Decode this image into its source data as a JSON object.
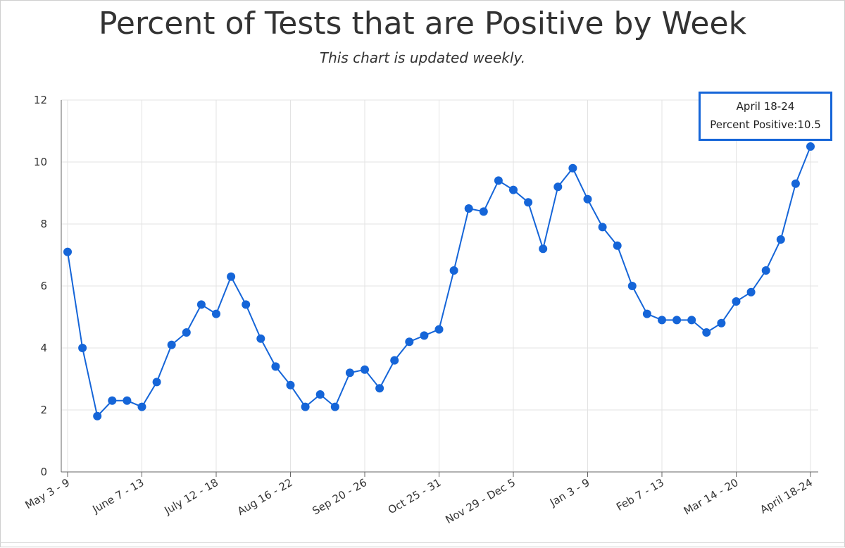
{
  "colors": {
    "series": "#1565d8",
    "grid": "#e3e3e3",
    "axis": "#666666",
    "text": "#333333"
  },
  "chart_data": {
    "type": "line",
    "title": "Percent of Tests that are Positive by Week",
    "subtitle": "This chart is updated weekly.",
    "xlabel": "",
    "ylabel": "",
    "ylim": [
      0,
      12
    ],
    "yticks": [
      0,
      2,
      4,
      6,
      8,
      10,
      12
    ],
    "grid": true,
    "x_tick_labels": [
      "May 3 - 9",
      "June 7 - 13",
      "July 12 - 18",
      "Aug 16 - 22",
      "Sep 20 - 26",
      "Oct 25 - 31",
      "Nov 29 - Dec 5",
      "Jan 3 - 9",
      "Feb 7 - 13",
      "Mar 14 - 20",
      "April 18-24"
    ],
    "x_tick_indices": [
      0,
      5,
      10,
      15,
      20,
      25,
      30,
      35,
      40,
      45,
      50
    ],
    "series": [
      {
        "values": [
          7.1,
          4.0,
          1.8,
          2.3,
          2.3,
          2.1,
          2.9,
          4.1,
          4.5,
          5.4,
          5.1,
          6.3,
          5.4,
          4.3,
          3.4,
          2.8,
          2.1,
          2.5,
          2.1,
          3.2,
          3.3,
          2.7,
          3.6,
          4.2,
          4.4,
          4.6,
          6.5,
          8.5,
          8.4,
          9.4,
          9.1,
          8.7,
          7.2,
          9.2,
          9.8,
          8.8,
          7.9,
          7.3,
          6.0,
          5.1,
          4.9,
          4.9,
          4.9,
          4.5,
          4.8,
          5.5,
          5.8,
          6.5,
          7.5,
          9.3,
          10.5
        ]
      }
    ],
    "tooltip": {
      "label": "April 18-24",
      "series_label": "Percent Positive:",
      "value": "10.5"
    }
  }
}
